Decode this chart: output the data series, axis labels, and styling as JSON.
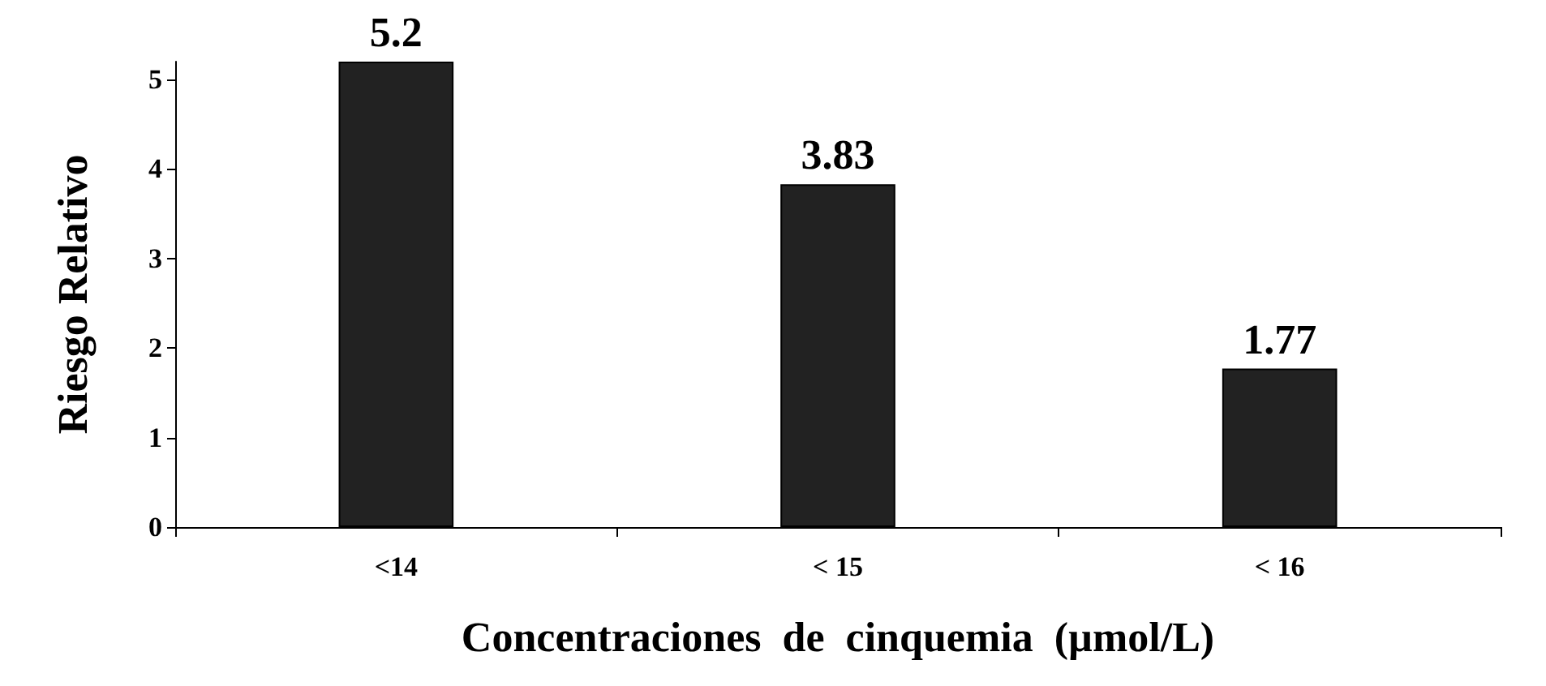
{
  "chart_data": {
    "type": "bar",
    "xlabel": "Concentraciones  de  cinquemia  (µmol/L)",
    "ylabel": "Riesgo Relativo",
    "categories": [
      "<14",
      "< 15",
      "< 16"
    ],
    "values": [
      5.2,
      3.83,
      1.77
    ],
    "color": "#222222",
    "ylim": [
      0,
      5.2
    ],
    "yticks": [
      0,
      1,
      2,
      3,
      4,
      5
    ],
    "grid": false,
    "data_labels": true
  }
}
